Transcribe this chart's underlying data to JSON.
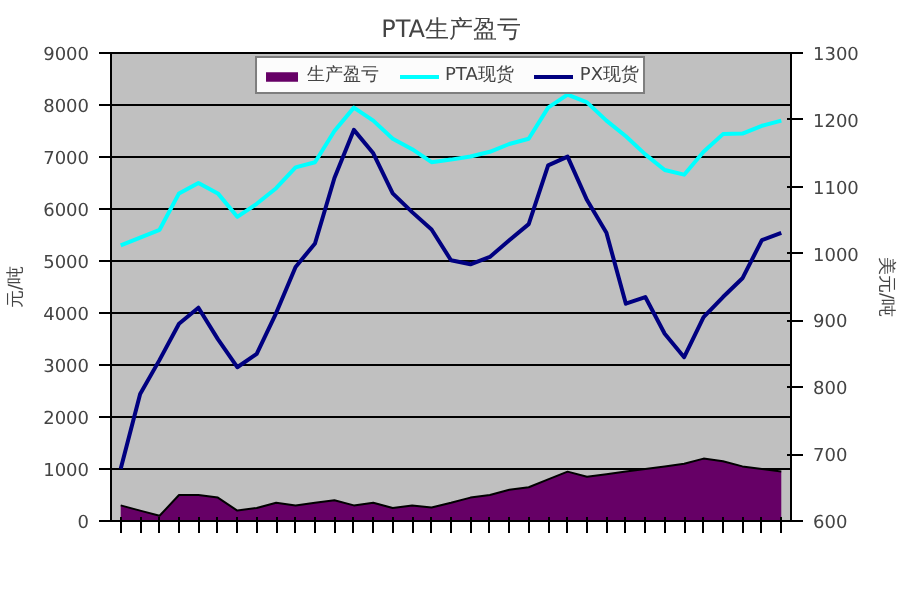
{
  "chart_data": {
    "type": "line",
    "title": "PTA生产盈亏",
    "ylabel": "元/吨",
    "y2label": "美元/吨",
    "categories": [
      null,
      null,
      null,
      null,
      null,
      null,
      null,
      null,
      null,
      null,
      null,
      null,
      null,
      null,
      null,
      null,
      null,
      null,
      null,
      null,
      null,
      null,
      null,
      null,
      null,
      null,
      null,
      null,
      null,
      null,
      null,
      null,
      null,
      null,
      null
    ],
    "ylim": [
      0,
      9000
    ],
    "yticks": [
      0,
      1000,
      2000,
      3000,
      4000,
      5000,
      6000,
      7000,
      8000,
      9000
    ],
    "y2lim": [
      600,
      1300
    ],
    "y2ticks": [
      600,
      700,
      800,
      900,
      1000,
      1100,
      1200,
      1300
    ],
    "grid": "y",
    "legend": "top",
    "tick_labels": "y",
    "series": [
      {
        "name": "生产盈亏",
        "type": "area",
        "color": "#660066",
        "values": [
          300,
          200,
          100,
          500,
          500,
          450,
          200,
          250,
          350,
          300,
          350,
          400,
          300,
          350,
          250,
          300,
          260,
          350,
          450,
          500,
          600,
          650,
          800,
          950,
          850,
          900,
          950,
          1000,
          1050,
          1100,
          1200,
          1150,
          1050,
          1000,
          950
        ]
      },
      {
        "name": "PTA现货",
        "color": "#00ffff",
        "values": [
          5300,
          5450,
          5600,
          6300,
          6500,
          6300,
          5850,
          6100,
          6400,
          6800,
          6900,
          7500,
          7950,
          7700,
          7350,
          7150,
          6900,
          6950,
          7010,
          7100,
          7250,
          7350,
          7950,
          8200,
          8050,
          7700,
          7400,
          7050,
          6750,
          6660,
          7100,
          7440,
          7450,
          7600,
          7700
        ]
      },
      {
        "name": "PX现货",
        "color": "#000080",
        "axis": "y2",
        "values": [
          678,
          790,
          841,
          895,
          919,
          872,
          830,
          850,
          911,
          980,
          1015,
          1113,
          1185,
          1150,
          1090,
          1062,
          1036,
          990,
          984,
          995,
          1020,
          1044,
          1132,
          1145,
          1080,
          1031,
          925,
          935,
          880,
          845,
          905,
          935,
          963,
          1020,
          1031
        ]
      }
    ]
  }
}
